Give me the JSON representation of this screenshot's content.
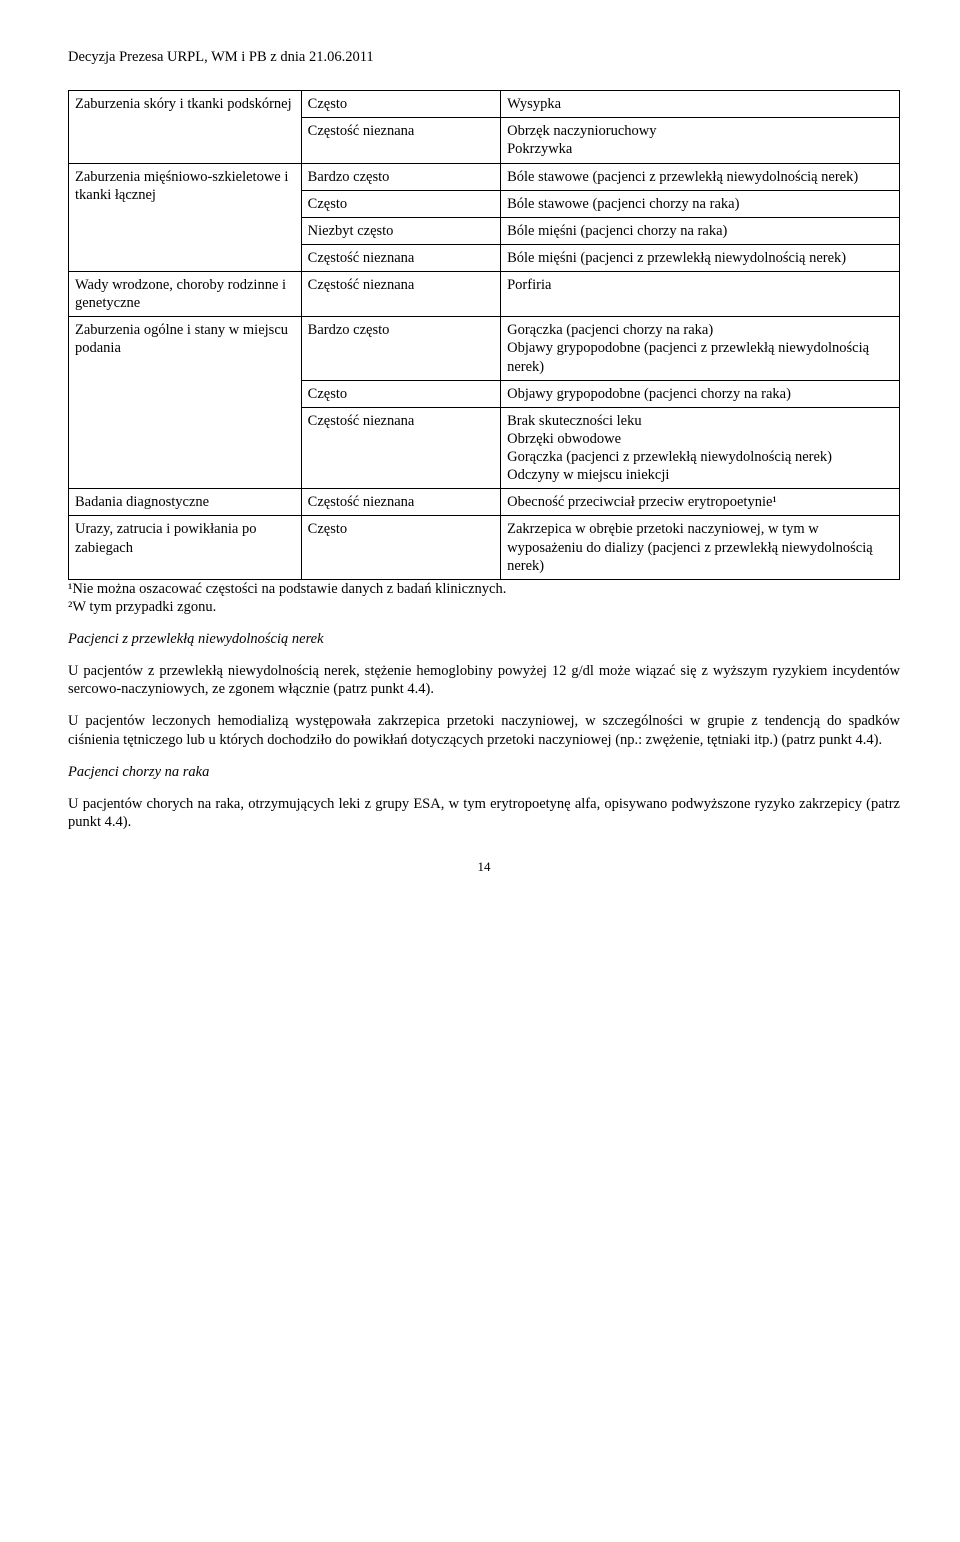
{
  "header": "Decyzja Prezesa URPL, WM i PB z dnia 21.06.2011",
  "table": {
    "rows": [
      {
        "c1": "Zaburzenia skóry i tkanki podskórnej",
        "c1rows": 2,
        "c2": "Często",
        "c3": "Wysypka"
      },
      {
        "c2": "Częstość nieznana",
        "c3": "Obrzęk naczynioruchowy\nPokrzywka"
      },
      {
        "c1": "Zaburzenia mięśniowo-szkieletowe i tkanki łącznej",
        "c1rows": 4,
        "c2": "Bardzo często",
        "c3": "Bóle stawowe (pacjenci z przewlekłą niewydolnością nerek)"
      },
      {
        "c2": "Często",
        "c3": "Bóle stawowe (pacjenci chorzy na raka)"
      },
      {
        "c2": "Niezbyt często",
        "c3": "Bóle mięśni (pacjenci chorzy na raka)"
      },
      {
        "c2": "Częstość nieznana",
        "c3": "Bóle mięśni (pacjenci z przewlekłą niewydolnością nerek)"
      },
      {
        "c1": "Wady wrodzone, choroby rodzinne i genetyczne",
        "c1rows": 1,
        "c2": "Częstość nieznana",
        "c3": "Porfiria"
      },
      {
        "c1": "Zaburzenia ogólne i stany w miejscu podania",
        "c1rows": 3,
        "c2": "Bardzo często",
        "c3": "Gorączka (pacjenci chorzy na raka)\nObjawy grypopodobne (pacjenci z przewlekłą niewydolnością nerek)"
      },
      {
        "c2": "Często",
        "c3": "Objawy grypopodobne (pacjenci chorzy na raka)"
      },
      {
        "c2": "Częstość nieznana",
        "c3": "Brak skuteczności leku\nObrzęki obwodowe\nGorączka (pacjenci z przewlekłą niewydolnością nerek)\nOdczyny w miejscu iniekcji"
      },
      {
        "c1": "Badania diagnostyczne",
        "c1rows": 1,
        "c2": "Częstość nieznana",
        "c3": "Obecność przeciwciał przeciw erytropoetynie¹"
      },
      {
        "c1": "Urazy, zatrucia i powikłania po zabiegach",
        "c1rows": 1,
        "c2": "Często",
        "c3": "Zakrzepica w obrębie przetoki naczyniowej, w tym w wyposażeniu do dializy (pacjenci z przewlekłą niewydolnością nerek)"
      }
    ]
  },
  "footnote1": "¹Nie można oszacować częstości na podstawie danych z badań klinicznych.",
  "footnote2": "²W tym przypadki zgonu.",
  "sec1title": "Pacjenci z przewlekłą niewydolnością nerek",
  "sec1p1": "U pacjentów z przewlekłą niewydolnością nerek, stężenie hemoglobiny powyżej 12 g/dl może wiązać się z wyższym ryzykiem incydentów sercowo-naczyniowych, ze zgonem włącznie (patrz punkt 4.4).",
  "sec1p2": "U pacjentów leczonych hemodializą występowała zakrzepica przetoki naczyniowej, w szczególności w grupie z tendencją do spadków ciśnienia tętniczego lub u których dochodziło do powikłań dotyczących przetoki naczyniowej (np.: zwężenie, tętniaki itp.) (patrz punkt 4.4).",
  "sec2title": "Pacjenci chorzy na raka",
  "sec2p1": "U pacjentów chorych na raka, otrzymujących leki z grupy ESA, w tym erytropoetynę alfa, opisywano podwyższone ryzyko zakrzepicy (patrz punkt 4.4).",
  "pagenum": "14"
}
